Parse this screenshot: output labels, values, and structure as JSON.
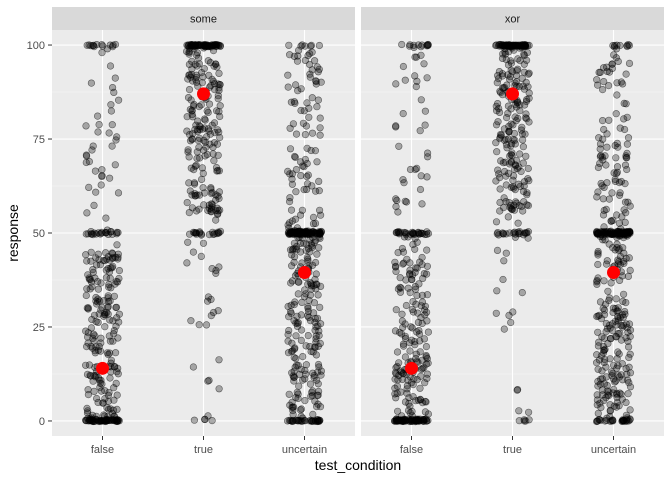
{
  "chart_data": {
    "type": "scatter",
    "style": "jittered strip plot, faceted",
    "xlabel": "test_condition",
    "ylabel": "response",
    "categories": [
      "false",
      "true",
      "uncertain"
    ],
    "ylim": [
      -4,
      104
    ],
    "yticks": [
      0,
      25,
      50,
      75,
      100
    ],
    "grid": true,
    "point_color": "#000000",
    "point_alpha": 0.3,
    "mean_color": "#ff0000",
    "facets": [
      {
        "label": "some",
        "means": [
          {
            "category": "false",
            "value": 14
          },
          {
            "category": "true",
            "value": 87
          },
          {
            "category": "uncertain",
            "value": 39.5
          }
        ]
      },
      {
        "label": "xor",
        "means": [
          {
            "category": "false",
            "value": 14
          },
          {
            "category": "true",
            "value": 87
          },
          {
            "category": "uncertain",
            "value": 39.5
          }
        ]
      }
    ]
  }
}
